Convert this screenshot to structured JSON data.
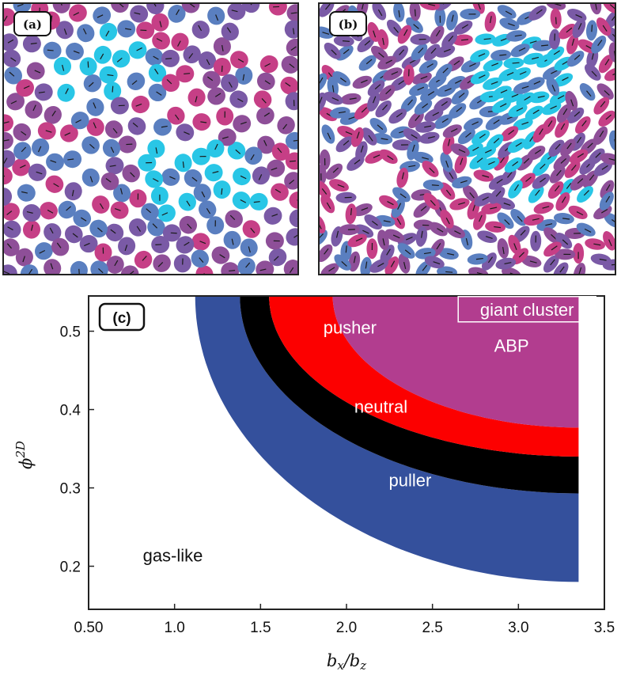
{
  "panels": {
    "a": {
      "tag": "(a)"
    },
    "b": {
      "tag": "(b)"
    },
    "c": {
      "tag": "(c)"
    }
  },
  "colors": {
    "cyan": "#29c6e6",
    "blue": "#5a7fc0",
    "violet": "#7a5aa6",
    "purple": "#8e4f98",
    "magenta": "#c63f86",
    "region_puller": "#34509c",
    "region_neutral": "#000000",
    "region_pusher": "#fc0000",
    "region_abp": "#b23d8f"
  },
  "chart_data": {
    "type": "area",
    "title": "",
    "xlabel": "b_x/b_z",
    "ylabel": "phi^2D",
    "xlim": [
      0.5,
      3.5
    ],
    "ylim": [
      0.145,
      0.545
    ],
    "xticks": [
      "0.50",
      "1.0",
      "1.5",
      "2.0",
      "2.5",
      "3.0",
      "3.5"
    ],
    "yticks": [
      "0.2",
      "0.3",
      "0.4",
      "0.5"
    ],
    "xtick_values": [
      0.5,
      1.0,
      1.5,
      2.0,
      2.5,
      3.0,
      3.5
    ],
    "ytick_values": [
      0.2,
      0.3,
      0.4,
      0.5
    ],
    "x_end": 3.35,
    "boundaries": [
      {
        "name": "gas-like/puller",
        "x_start": 1.12,
        "y_end": 0.18
      },
      {
        "name": "puller/neutral",
        "x_start": 1.38,
        "y_end": 0.293
      },
      {
        "name": "neutral/pusher",
        "x_start": 1.55,
        "y_end": 0.34
      },
      {
        "name": "pusher/ABP",
        "x_start": 1.92,
        "y_end": 0.377
      }
    ],
    "regions": [
      {
        "name": "puller",
        "label": "puller"
      },
      {
        "name": "neutral",
        "label": "neutral"
      },
      {
        "name": "pusher",
        "label": "pusher"
      },
      {
        "name": "ABP",
        "label": "ABP"
      }
    ],
    "annotations": [
      {
        "text": "gas-like",
        "x": 0.99,
        "y": 0.206
      },
      {
        "text": "puller",
        "x": 2.37,
        "y": 0.302
      },
      {
        "text": "neutral",
        "x": 2.2,
        "y": 0.396
      },
      {
        "text": "pusher",
        "x": 2.02,
        "y": 0.497
      },
      {
        "text": "ABP",
        "x": 2.96,
        "y": 0.474
      },
      {
        "text": "giant cluster",
        "x": 3.05,
        "y": 0.52
      }
    ]
  }
}
